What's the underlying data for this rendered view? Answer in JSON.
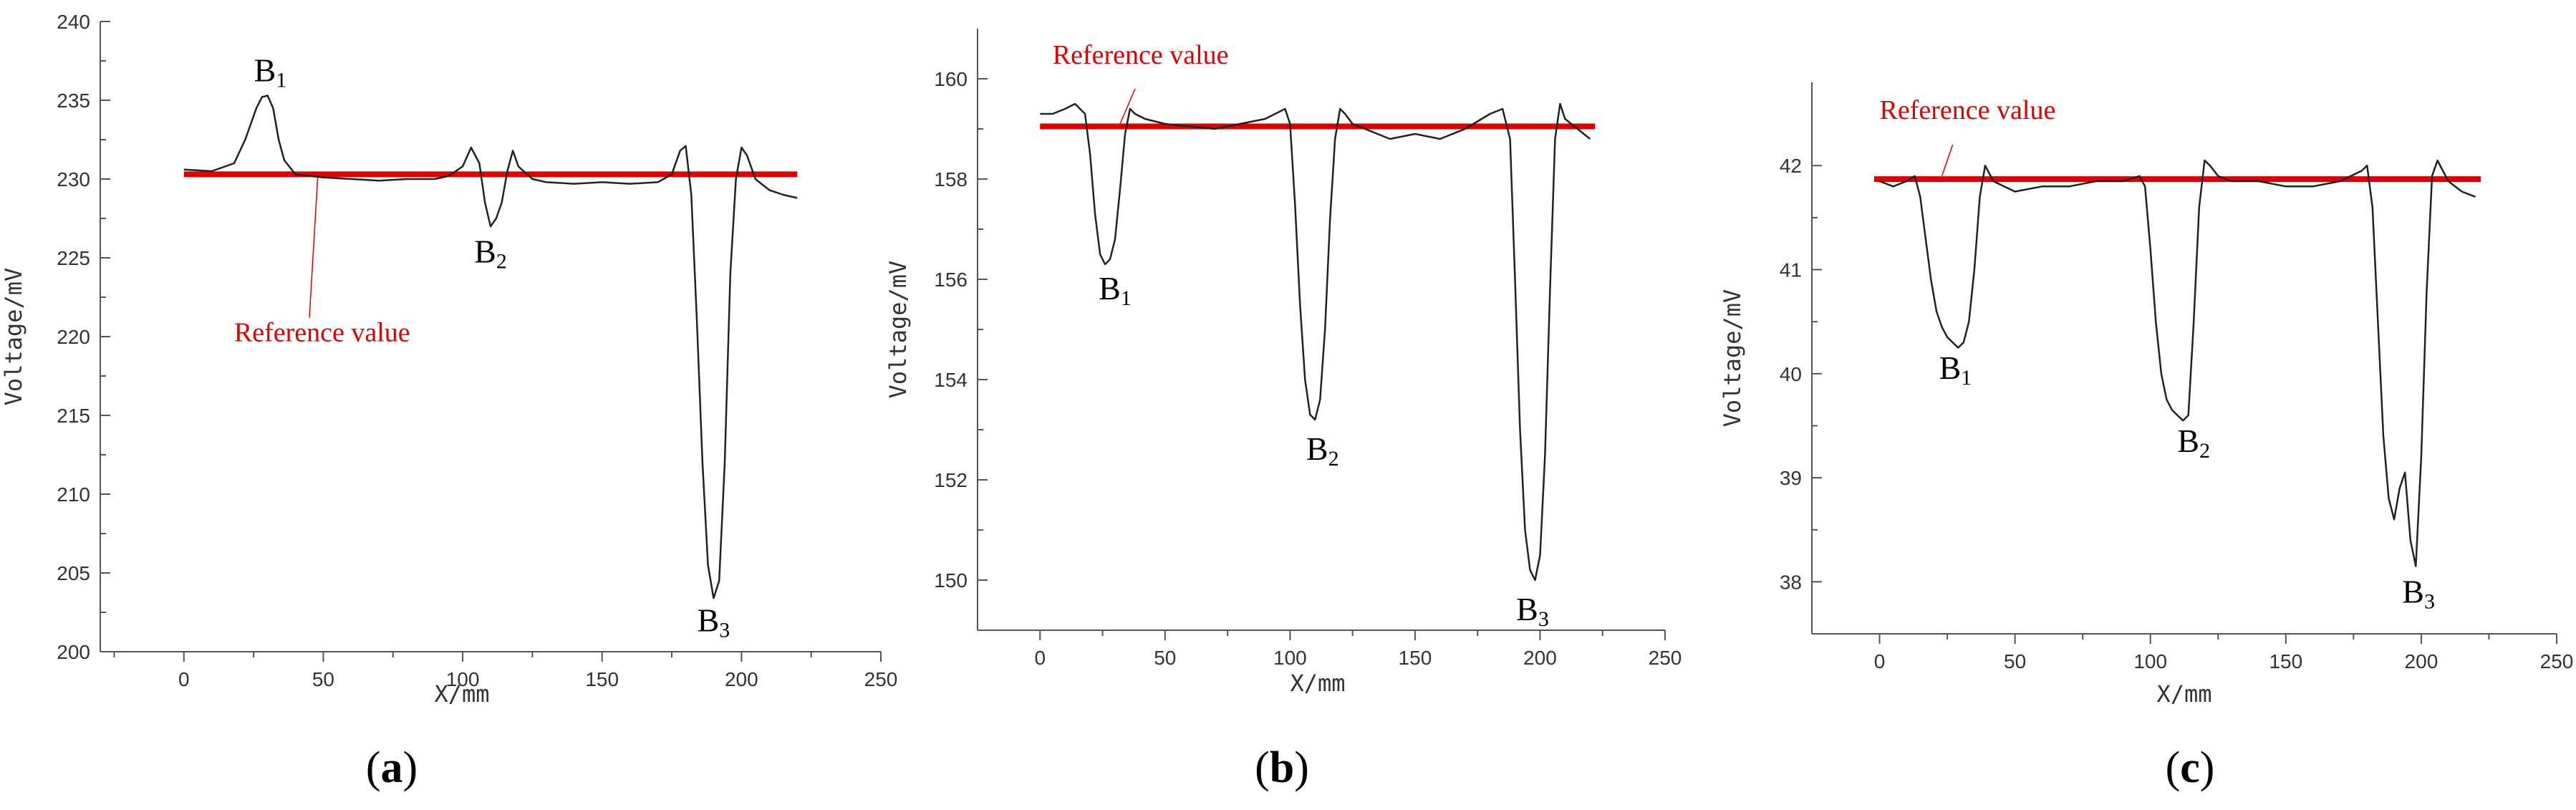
{
  "chart_data": [
    {
      "id": "a",
      "type": "line",
      "panel_label": "a",
      "xlabel": "X/mm",
      "ylabel": "Voltage/mV",
      "xlim": [
        -30,
        250
      ],
      "ylim": [
        200,
        240
      ],
      "xticks": [
        0,
        50,
        100,
        150,
        200,
        250
      ],
      "yticks": [
        200,
        205,
        210,
        215,
        220,
        225,
        230,
        235,
        240
      ],
      "reference": {
        "label": "Reference value",
        "value": 230.3,
        "x_range": [
          0,
          220
        ],
        "color": "#e00000"
      },
      "series": [
        {
          "name": "Voltage",
          "color": "#222222",
          "x": [
            0,
            10,
            18,
            22,
            26,
            28,
            30,
            32,
            34,
            36,
            40,
            45,
            50,
            60,
            70,
            80,
            90,
            95,
            100,
            103,
            106,
            108,
            110,
            112,
            114,
            116,
            118,
            120,
            125,
            130,
            140,
            150,
            160,
            170,
            175,
            178,
            180,
            182,
            184,
            186,
            188,
            190,
            192,
            194,
            196,
            198,
            200,
            202,
            205,
            210,
            215,
            220
          ],
          "y": [
            230.6,
            230.5,
            231.0,
            232.5,
            234.5,
            235.2,
            235.3,
            234.5,
            232.5,
            231.2,
            230.3,
            230.2,
            230.1,
            230.0,
            229.9,
            230.0,
            230.0,
            230.2,
            230.8,
            232.0,
            231.0,
            228.5,
            227.0,
            227.5,
            228.5,
            230.5,
            231.8,
            230.8,
            230.0,
            229.8,
            229.7,
            229.8,
            229.7,
            229.8,
            230.3,
            231.8,
            232.1,
            229.0,
            221.0,
            212.0,
            205.5,
            203.4,
            204.5,
            212.0,
            224.0,
            230.0,
            232.0,
            231.5,
            230.0,
            229.3,
            229.0,
            228.8
          ]
        }
      ],
      "annotations": [
        {
          "base": "B",
          "sub": "1",
          "x": 31,
          "y": 236.2
        },
        {
          "base": "B",
          "sub": "2",
          "x": 110,
          "y": 224.7
        },
        {
          "base": "B",
          "sub": "3",
          "x": 190,
          "y": 201.3
        }
      ],
      "ref_label_pos": {
        "x": 18,
        "y": 219.7
      },
      "ref_pointer": {
        "x1": 45,
        "y1": 221.2,
        "x2": 48,
        "y2": 230.1
      }
    },
    {
      "id": "b",
      "type": "line",
      "panel_label": "b",
      "xlabel": "X/mm",
      "ylabel": "Voltage/mV",
      "xlim": [
        -25,
        250
      ],
      "ylim": [
        149,
        161
      ],
      "xticks": [
        0,
        50,
        100,
        150,
        200,
        250
      ],
      "yticks": [
        150,
        152,
        154,
        156,
        158,
        160
      ],
      "reference": {
        "label": "Reference value",
        "value": 159.05,
        "x_range": [
          0,
          222
        ],
        "color": "#e00000"
      },
      "series": [
        {
          "name": "Voltage",
          "color": "#222222",
          "x": [
            0,
            5,
            10,
            14,
            18,
            20,
            22,
            24,
            26,
            28,
            30,
            32,
            34,
            36,
            38,
            42,
            50,
            60,
            70,
            80,
            90,
            98,
            100,
            102,
            104,
            106,
            108,
            110,
            112,
            114,
            116,
            118,
            120,
            122,
            125,
            130,
            140,
            150,
            160,
            170,
            180,
            185,
            188,
            190,
            192,
            194,
            196,
            198,
            200,
            202,
            204,
            206,
            208,
            210,
            215,
            220
          ],
          "y": [
            159.3,
            159.3,
            159.4,
            159.5,
            159.3,
            158.5,
            157.3,
            156.5,
            156.3,
            156.4,
            156.8,
            157.8,
            158.9,
            159.4,
            159.3,
            159.2,
            159.1,
            159.05,
            159.0,
            159.1,
            159.2,
            159.4,
            159.1,
            157.5,
            155.5,
            154.0,
            153.3,
            153.2,
            153.6,
            155.0,
            157.2,
            158.8,
            159.4,
            159.3,
            159.1,
            159.0,
            158.8,
            158.9,
            158.8,
            159.0,
            159.3,
            159.4,
            158.8,
            156.0,
            153.0,
            151.0,
            150.2,
            150.0,
            150.5,
            152.5,
            155.8,
            158.8,
            159.5,
            159.2,
            159.0,
            158.8
          ]
        }
      ],
      "annotations": [
        {
          "base": "B",
          "sub": "1",
          "x": 30,
          "y": 155.6
        },
        {
          "base": "B",
          "sub": "2",
          "x": 113,
          "y": 152.4
        },
        {
          "base": "B",
          "sub": "3",
          "x": 197,
          "y": 149.2
        }
      ],
      "ref_label_pos": {
        "x": 5,
        "y": 160.3
      },
      "ref_pointer": {
        "x1": 38,
        "y1": 159.8,
        "x2": 32,
        "y2": 159.1
      }
    },
    {
      "id": "c",
      "type": "line",
      "panel_label": "c",
      "xlabel": "X/mm",
      "ylabel": "Voltage/mV",
      "xlim": [
        -25,
        250
      ],
      "ylim": [
        37.5,
        42.8
      ],
      "xticks": [
        0,
        50,
        100,
        150,
        200,
        250
      ],
      "yticks": [
        38,
        39,
        40,
        41,
        42
      ],
      "reference": {
        "label": "Reference value",
        "value": 41.87,
        "x_range": [
          -2,
          222
        ],
        "color": "#e00000"
      },
      "series": [
        {
          "name": "Voltage",
          "color": "#222222",
          "x": [
            0,
            5,
            10,
            13,
            15,
            17,
            19,
            21,
            23,
            25,
            27,
            29,
            31,
            33,
            35,
            37,
            39,
            42,
            50,
            60,
            70,
            80,
            90,
            96,
            98,
            100,
            102,
            104,
            106,
            108,
            110,
            112,
            114,
            116,
            118,
            120,
            122,
            125,
            130,
            140,
            150,
            160,
            170,
            178,
            180,
            182,
            184,
            186,
            188,
            190,
            192,
            194,
            196,
            198,
            200,
            202,
            204,
            206,
            210,
            215,
            220
          ],
          "y": [
            41.85,
            41.8,
            41.85,
            41.9,
            41.7,
            41.3,
            40.9,
            40.6,
            40.45,
            40.35,
            40.3,
            40.25,
            40.3,
            40.5,
            41.0,
            41.7,
            42.0,
            41.85,
            41.75,
            41.8,
            41.8,
            41.85,
            41.85,
            41.9,
            41.8,
            41.2,
            40.5,
            40.0,
            39.75,
            39.65,
            39.6,
            39.55,
            39.6,
            40.5,
            41.6,
            42.05,
            42.0,
            41.9,
            41.85,
            41.85,
            41.8,
            41.8,
            41.85,
            41.95,
            42.0,
            41.6,
            40.5,
            39.4,
            38.8,
            38.6,
            38.9,
            39.05,
            38.4,
            38.15,
            39.2,
            40.8,
            41.9,
            42.05,
            41.85,
            41.75,
            41.7
          ]
        }
      ],
      "annotations": [
        {
          "base": "B",
          "sub": "1",
          "x": 28,
          "y": 39.95
        },
        {
          "base": "B",
          "sub": "2",
          "x": 116,
          "y": 39.25
        },
        {
          "base": "B",
          "sub": "3",
          "x": 199,
          "y": 37.8
        }
      ],
      "ref_label_pos": {
        "x": 0,
        "y": 42.45
      },
      "ref_pointer": {
        "x1": 27,
        "y1": 42.2,
        "x2": 23,
        "y2": 41.9
      }
    }
  ]
}
